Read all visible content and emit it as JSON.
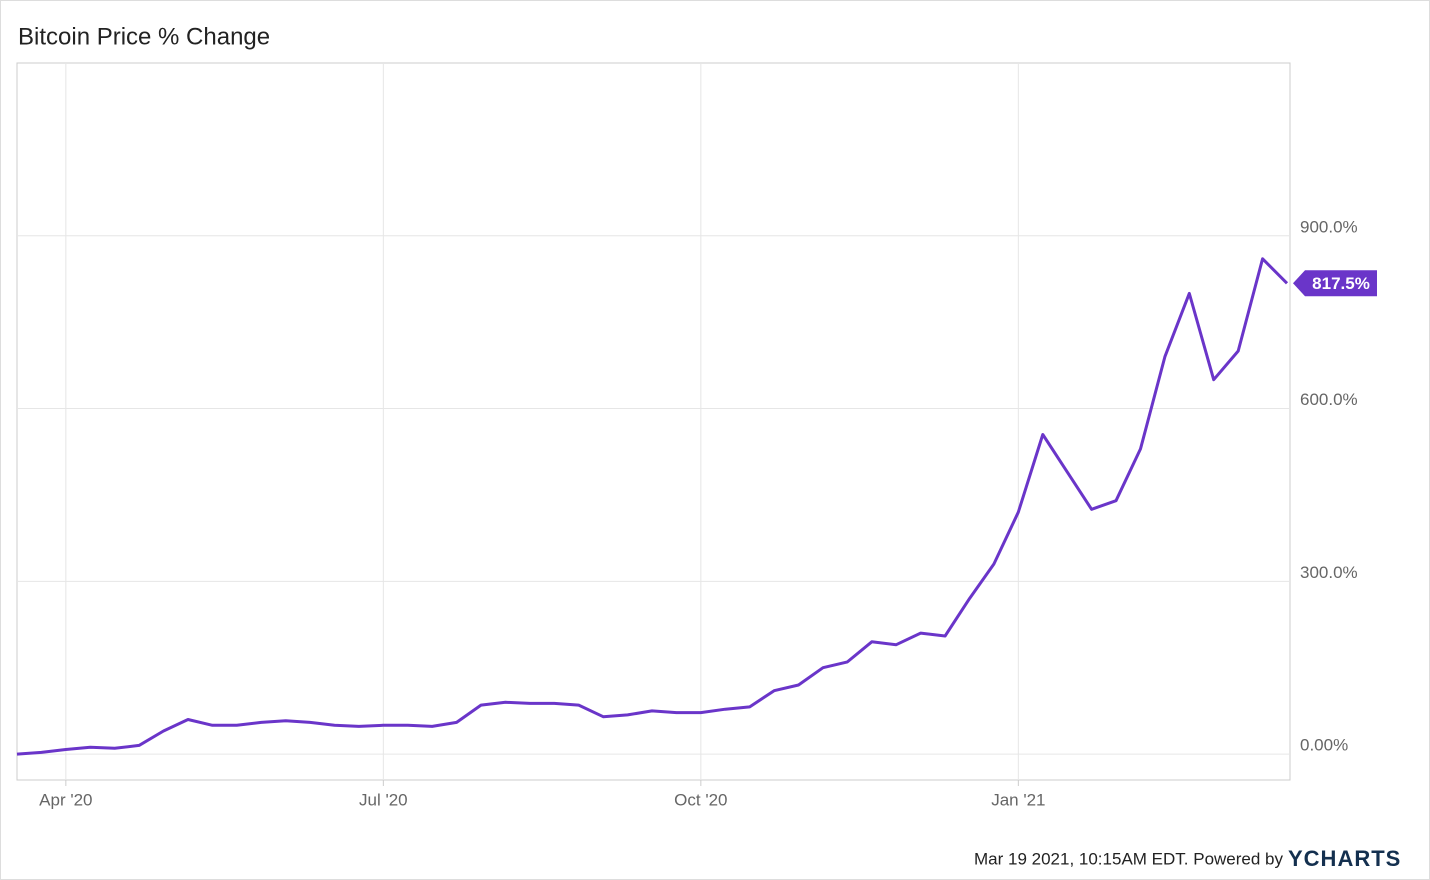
{
  "chart_data": {
    "type": "line",
    "title": "Bitcoin Price % Change",
    "categories": [
      null,
      null,
      "Apr '20",
      null,
      null,
      null,
      null,
      null,
      null,
      null,
      null,
      null,
      null,
      null,
      null,
      "Jul '20",
      null,
      null,
      null,
      null,
      null,
      null,
      null,
      null,
      null,
      null,
      null,
      null,
      "Oct '20",
      null,
      null,
      null,
      null,
      null,
      null,
      null,
      null,
      null,
      null,
      null,
      null,
      "Jan '21",
      null,
      null,
      null,
      null,
      null,
      null,
      null,
      null,
      null,
      null,
      null
    ],
    "series": [
      {
        "name": "Bitcoin Price % Change",
        "color": "#6a35c9",
        "values": [
          0,
          3,
          8,
          12,
          10,
          15,
          40,
          60,
          50,
          50,
          55,
          58,
          55,
          50,
          48,
          50,
          50,
          48,
          55,
          85,
          90,
          88,
          88,
          85,
          65,
          68,
          75,
          72,
          72,
          78,
          82,
          110,
          120,
          150,
          160,
          195,
          190,
          210,
          205,
          270,
          330,
          420,
          555,
          490,
          425,
          440,
          530,
          690,
          800,
          650,
          700,
          860,
          817.5
        ],
        "value_labels": [
          null,
          null,
          null,
          null,
          null,
          null,
          null,
          null,
          null,
          null,
          null,
          null,
          null,
          null,
          null,
          null,
          null,
          null,
          null,
          null,
          null,
          null,
          null,
          null,
          null,
          null,
          null,
          null,
          null,
          null,
          null,
          null,
          null,
          null,
          null,
          null,
          null,
          null,
          null,
          null,
          null,
          null,
          null,
          null,
          null,
          null,
          null,
          null,
          null,
          null,
          null,
          null,
          "817.5%"
        ]
      }
    ],
    "ylim": [
      -45,
      1200
    ],
    "yticks": [
      {
        "value": 0,
        "label": "0.00%"
      },
      {
        "value": 300,
        "label": "300.0%"
      },
      {
        "value": 600,
        "label": "600.0%"
      },
      {
        "value": 900,
        "label": "900.0%"
      }
    ],
    "grid": true,
    "footer": "Mar 19 2021, 10:15AM EDT. Powered by",
    "brand": "YCHARTS"
  }
}
